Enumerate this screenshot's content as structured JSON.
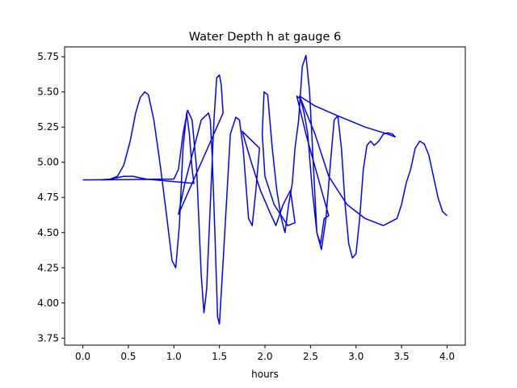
{
  "chart_data": {
    "type": "line",
    "title": "Water Depth h at gauge 6",
    "xlabel": "hours",
    "ylabel": "",
    "xlim": [
      -0.2,
      4.2
    ],
    "ylim": [
      3.7,
      5.82
    ],
    "xticks": [
      0.0,
      0.5,
      1.0,
      1.5,
      2.0,
      2.5,
      3.0,
      3.5,
      4.0
    ],
    "xtick_labels": [
      "0.0",
      "0.5",
      "1.0",
      "1.5",
      "2.0",
      "2.5",
      "3.0",
      "3.5",
      "4.0"
    ],
    "yticks": [
      3.75,
      4.0,
      4.25,
      4.5,
      4.75,
      5.0,
      5.25,
      5.5,
      5.75
    ],
    "ytick_labels": [
      "3.75",
      "4.00",
      "4.25",
      "4.50",
      "4.75",
      "5.00",
      "5.25",
      "5.50",
      "5.75"
    ],
    "grid": false,
    "colors": {
      "line": "#0000ff",
      "frame": "#000000"
    },
    "series": [
      {
        "x": [
          0.0,
          0.1,
          0.2,
          0.3,
          0.38,
          0.45,
          0.52,
          0.58,
          0.63,
          0.68,
          0.72,
          0.78,
          0.85,
          0.92,
          0.98,
          1.02,
          1.06,
          1.1,
          1.14,
          1.17,
          1.2,
          1.22,
          0.7,
          0.62,
          0.55,
          0.45,
          0.3,
          0.2,
          0.4,
          0.6,
          0.8,
          1.0,
          1.05,
          1.1,
          1.15,
          1.2,
          1.25,
          1.3,
          1.33,
          1.36,
          1.4,
          1.44,
          1.47,
          1.5,
          1.52,
          1.54,
          1.05,
          1.12,
          1.2,
          1.3,
          1.38,
          1.4,
          1.42,
          1.45,
          1.48,
          1.5,
          1.55,
          1.62,
          1.68,
          1.72,
          1.76,
          1.82,
          1.86,
          1.9,
          1.94,
          1.75,
          1.85,
          1.95,
          2.05,
          2.12,
          2.2,
          2.28,
          2.33,
          2.25,
          2.1,
          2.0,
          1.97,
          1.99,
          2.03,
          2.08,
          2.13,
          2.18,
          2.22,
          2.26,
          2.3,
          2.33,
          2.37,
          2.41,
          2.45,
          2.49,
          2.53,
          2.57,
          2.61,
          2.65,
          2.7,
          2.6,
          2.45,
          2.35,
          2.39,
          2.43,
          2.47,
          2.52,
          2.57,
          2.62,
          2.67,
          2.72,
          2.76,
          2.8,
          2.84,
          2.88,
          2.92,
          2.96,
          3.0,
          3.04,
          3.08,
          3.12,
          3.16,
          3.2,
          3.25,
          3.3,
          3.35,
          3.4,
          3.43,
          3.35,
          3.1,
          2.8,
          2.55,
          2.38,
          2.55,
          2.7,
          2.9,
          3.1,
          3.3,
          3.45,
          3.5,
          3.55,
          3.6,
          3.65,
          3.7,
          3.75,
          3.8,
          3.85,
          3.9,
          3.95,
          4.0
        ],
        "y": [
          4.875,
          4.875,
          4.876,
          4.88,
          4.9,
          4.98,
          5.15,
          5.35,
          5.46,
          5.5,
          5.48,
          5.3,
          4.98,
          4.62,
          4.3,
          4.25,
          4.55,
          5.1,
          5.35,
          5.2,
          4.95,
          4.85,
          4.88,
          4.89,
          4.9,
          4.9,
          4.88,
          4.875,
          4.876,
          4.878,
          4.88,
          4.88,
          4.95,
          5.2,
          5.37,
          5.3,
          4.95,
          4.2,
          3.93,
          4.1,
          4.7,
          5.3,
          5.6,
          5.62,
          5.55,
          5.35,
          4.63,
          4.85,
          5.05,
          5.3,
          5.35,
          5.3,
          5.05,
          4.5,
          3.9,
          3.85,
          4.4,
          5.2,
          5.32,
          5.3,
          5.1,
          4.6,
          4.55,
          4.8,
          5.1,
          5.22,
          5.0,
          4.8,
          4.65,
          4.55,
          4.7,
          4.8,
          4.57,
          4.55,
          4.7,
          4.9,
          5.2,
          5.5,
          5.48,
          5.1,
          4.8,
          4.6,
          4.5,
          4.7,
          4.85,
          5.1,
          5.3,
          5.68,
          5.76,
          5.5,
          5.0,
          4.5,
          4.42,
          4.6,
          4.62,
          4.85,
          5.2,
          5.47,
          5.45,
          5.35,
          5.2,
          4.8,
          4.5,
          4.38,
          4.6,
          5.0,
          5.3,
          5.33,
          5.1,
          4.7,
          4.42,
          4.32,
          4.35,
          4.6,
          4.95,
          5.12,
          5.15,
          5.12,
          5.15,
          5.2,
          5.21,
          5.2,
          5.18,
          5.2,
          5.25,
          5.33,
          5.4,
          5.47,
          5.2,
          4.9,
          4.7,
          4.6,
          4.55,
          4.6,
          4.7,
          4.85,
          4.95,
          5.1,
          5.15,
          5.13,
          5.05,
          4.9,
          4.75,
          4.65,
          4.62
        ]
      }
    ]
  }
}
